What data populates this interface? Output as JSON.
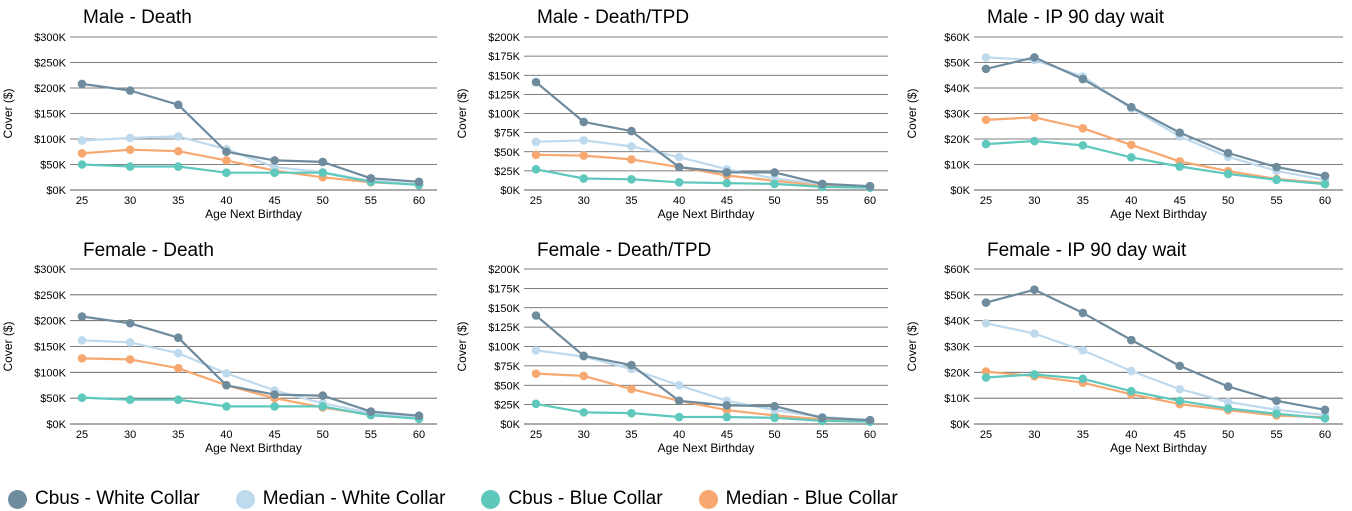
{
  "legend": [
    {
      "name": "Cbus - White Collar",
      "color": "#6f8b9e"
    },
    {
      "name": "Median - White Collar",
      "color": "#bfd9ed"
    },
    {
      "name": "Cbus - Blue Collar",
      "color": "#5ec8bd"
    },
    {
      "name": "Median - Blue Collar",
      "color": "#f7a870"
    }
  ],
  "chart_data": [
    {
      "type": "line",
      "title": "Male - Death",
      "xlabel": "Age Next Birthday",
      "ylabel": "Cover ($)",
      "x": [
        25,
        30,
        35,
        40,
        45,
        50,
        55,
        60
      ],
      "ylim": [
        0,
        300000
      ],
      "yticks": [
        "$0K",
        "$50K",
        "$100K",
        "$150K",
        "$200K",
        "$250K",
        "$300K"
      ],
      "series": [
        {
          "name": "Cbus - White Collar",
          "values": [
            208000,
            195000,
            167000,
            75000,
            58000,
            55000,
            23000,
            16000
          ]
        },
        {
          "name": "Median - White Collar",
          "values": [
            97000,
            102000,
            105000,
            80000,
            45000,
            35000,
            18000,
            10000
          ]
        },
        {
          "name": "Cbus - Blue Collar",
          "values": [
            50000,
            46000,
            46000,
            34000,
            34000,
            34000,
            16000,
            10000
          ]
        },
        {
          "name": "Median - Blue Collar",
          "values": [
            72000,
            79000,
            76000,
            58000,
            38000,
            25000,
            15000,
            11000
          ]
        }
      ]
    },
    {
      "type": "line",
      "title": "Male - Death/TPD",
      "xlabel": "Age Next Birthday",
      "ylabel": "Cover ($)",
      "x": [
        25,
        30,
        35,
        40,
        45,
        50,
        55,
        60
      ],
      "ylim": [
        0,
        200000
      ],
      "yticks": [
        "$0K",
        "$25K",
        "$50K",
        "$75K",
        "$100K",
        "$125K",
        "$150K",
        "$175K",
        "$200K"
      ],
      "series": [
        {
          "name": "Cbus - White Collar",
          "values": [
            141000,
            89000,
            77000,
            30000,
            23000,
            23000,
            8000,
            5000
          ]
        },
        {
          "name": "Median - White Collar",
          "values": [
            63000,
            65000,
            57000,
            43000,
            27000,
            15000,
            8000,
            5000
          ]
        },
        {
          "name": "Cbus - Blue Collar",
          "values": [
            27000,
            15000,
            14000,
            10000,
            9000,
            8000,
            4000,
            3000
          ]
        },
        {
          "name": "Median - Blue Collar",
          "values": [
            46000,
            45000,
            40000,
            30000,
            19000,
            12000,
            6000,
            4000
          ]
        }
      ]
    },
    {
      "type": "line",
      "title": "Male - IP 90 day wait",
      "xlabel": "Age Next Birthday",
      "ylabel": "Cover ($)",
      "x": [
        25,
        30,
        35,
        40,
        45,
        50,
        55,
        60
      ],
      "ylim": [
        0,
        60000
      ],
      "yticks": [
        "$0K",
        "$10K",
        "$20K",
        "$30K",
        "$40K",
        "$50K",
        "$60K"
      ],
      "series": [
        {
          "name": "Cbus - White Collar",
          "values": [
            47500,
            52000,
            43500,
            32500,
            22500,
            14500,
            9000,
            5500
          ]
        },
        {
          "name": "Median - White Collar",
          "values": [
            52000,
            51000,
            44500,
            32000,
            21000,
            13000,
            7500,
            4000
          ]
        },
        {
          "name": "Cbus - Blue Collar",
          "values": [
            18000,
            19200,
            17500,
            12800,
            9200,
            6300,
            4000,
            2300
          ]
        },
        {
          "name": "Median - Blue Collar",
          "values": [
            27500,
            28500,
            24200,
            17700,
            11200,
            7400,
            4300,
            2700
          ]
        }
      ]
    },
    {
      "type": "line",
      "title": "Female - Death",
      "xlabel": "Age Next Birthday",
      "ylabel": "Cover ($)",
      "x": [
        25,
        30,
        35,
        40,
        45,
        50,
        55,
        60
      ],
      "ylim": [
        0,
        300000
      ],
      "yticks": [
        "$0K",
        "$50K",
        "$100K",
        "$150K",
        "$200K",
        "$250K",
        "$300K"
      ],
      "series": [
        {
          "name": "Cbus - White Collar",
          "values": [
            208000,
            195000,
            167000,
            75000,
            57000,
            55000,
            24000,
            16000
          ]
        },
        {
          "name": "Median - White Collar",
          "values": [
            162000,
            158000,
            137000,
            98000,
            65000,
            40000,
            21000,
            12000
          ]
        },
        {
          "name": "Cbus - Blue Collar",
          "values": [
            51000,
            47000,
            47000,
            34000,
            34000,
            34000,
            17000,
            10000
          ]
        },
        {
          "name": "Median - Blue Collar",
          "values": [
            127000,
            125000,
            108000,
            75000,
            50000,
            32000,
            18000,
            13000
          ]
        }
      ]
    },
    {
      "type": "line",
      "title": "Female - Death/TPD",
      "xlabel": "Age Next Birthday",
      "ylabel": "Cover ($)",
      "x": [
        25,
        30,
        35,
        40,
        45,
        50,
        55,
        60
      ],
      "ylim": [
        0,
        200000
      ],
      "yticks": [
        "$0K",
        "$25K",
        "$50K",
        "$75K",
        "$100K",
        "$125K",
        "$150K",
        "$175K",
        "$200K"
      ],
      "series": [
        {
          "name": "Cbus - White Collar",
          "values": [
            140000,
            88000,
            76000,
            30000,
            24000,
            23000,
            8000,
            5000
          ]
        },
        {
          "name": "Median - White Collar",
          "values": [
            95000,
            87000,
            71000,
            50000,
            30000,
            18000,
            9000,
            5000
          ]
        },
        {
          "name": "Cbus - Blue Collar",
          "values": [
            26000,
            15000,
            14000,
            9000,
            9000,
            8000,
            4000,
            3000
          ]
        },
        {
          "name": "Median - Blue Collar",
          "values": [
            65000,
            62000,
            45000,
            30000,
            18000,
            11000,
            6000,
            4000
          ]
        }
      ]
    },
    {
      "type": "line",
      "title": "Female - IP 90 day wait",
      "xlabel": "Age Next Birthday",
      "ylabel": "Cover ($)",
      "x": [
        25,
        30,
        35,
        40,
        45,
        50,
        55,
        60
      ],
      "ylim": [
        0,
        60000
      ],
      "yticks": [
        "$0K",
        "$10K",
        "$20K",
        "$30K",
        "$40K",
        "$50K",
        "$60K"
      ],
      "series": [
        {
          "name": "Cbus - White Collar",
          "values": [
            47000,
            52000,
            43000,
            32500,
            22500,
            14500,
            9000,
            5500
          ]
        },
        {
          "name": "Median - White Collar",
          "values": [
            39000,
            35000,
            28500,
            20500,
            13500,
            8500,
            5500,
            3500
          ]
        },
        {
          "name": "Cbus - Blue Collar",
          "values": [
            18000,
            19200,
            17500,
            12700,
            9000,
            6000,
            4000,
            2200
          ]
        },
        {
          "name": "Median - Blue Collar",
          "values": [
            20300,
            18500,
            16000,
            11500,
            7700,
            5400,
            3300,
            2600
          ]
        }
      ]
    }
  ]
}
